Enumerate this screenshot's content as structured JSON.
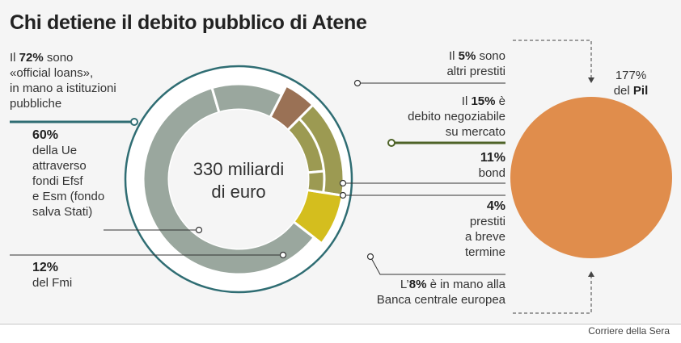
{
  "header": {
    "title": "Chi detiene il debito pubblico di Atene"
  },
  "colors": {
    "official": "#9aa79e",
    "other_loans": "#9a7155",
    "tradable": "#9c9a52",
    "bce": "#d4be1e",
    "pil": "#e08d4c",
    "dark_green": "#4e6328",
    "teal": "#2f6d73",
    "ring": "#ffffff"
  },
  "chart_data": {
    "type": "pie",
    "center_label_line1": "330 miliardi",
    "center_label_line2": "di euro",
    "outer_ring": [
      {
        "name": "official loans",
        "value": 72
      },
      {
        "name": "altri prestiti",
        "value": 5
      },
      {
        "name": "debito negoziabile su mercato",
        "value": 15
      },
      {
        "name": "Banca centrale europea",
        "value": 8
      }
    ],
    "inner_ring": [
      {
        "name": "Ue",
        "value": 60
      },
      {
        "name": "Fmi",
        "value": 12
      },
      {
        "name": "bond",
        "value": 11
      },
      {
        "name": "prestiti a breve termine",
        "value": 4
      }
    ],
    "pil": {
      "pct": "177%",
      "label": "del",
      "label_bold": "Pil",
      "value": 177
    }
  },
  "labels": {
    "official": {
      "pre": "Il",
      "pct": "72%",
      "post": "sono",
      "line2": "«official loans»,",
      "line3": "in mano a istituzioni",
      "line4": "pubbliche"
    },
    "ue": {
      "pct": "60%",
      "l1": "della Ue",
      "l2": "attraverso",
      "l3": "fondi Efsf",
      "l4": "e Esm (fondo",
      "l5": "salva Stati)"
    },
    "fmi": {
      "pct": "12%",
      "l1": "del Fmi"
    },
    "altri": {
      "pre": "Il",
      "pct": "5%",
      "post": "sono",
      "line2": "altri prestiti"
    },
    "negoziabile": {
      "pre": "Il",
      "pct": "15%",
      "post": "è",
      "line2": "debito negoziabile",
      "line3": "su mercato"
    },
    "bond": {
      "pct": "11%",
      "l1": "bond"
    },
    "breve": {
      "pct": "4%",
      "l1": "prestiti",
      "l2": "a breve",
      "l3": "termine"
    },
    "bce": {
      "pre": "L’",
      "pct": "8%",
      "post": "è in mano alla",
      "line2": "Banca centrale europea"
    }
  },
  "source": "Corriere della Sera"
}
